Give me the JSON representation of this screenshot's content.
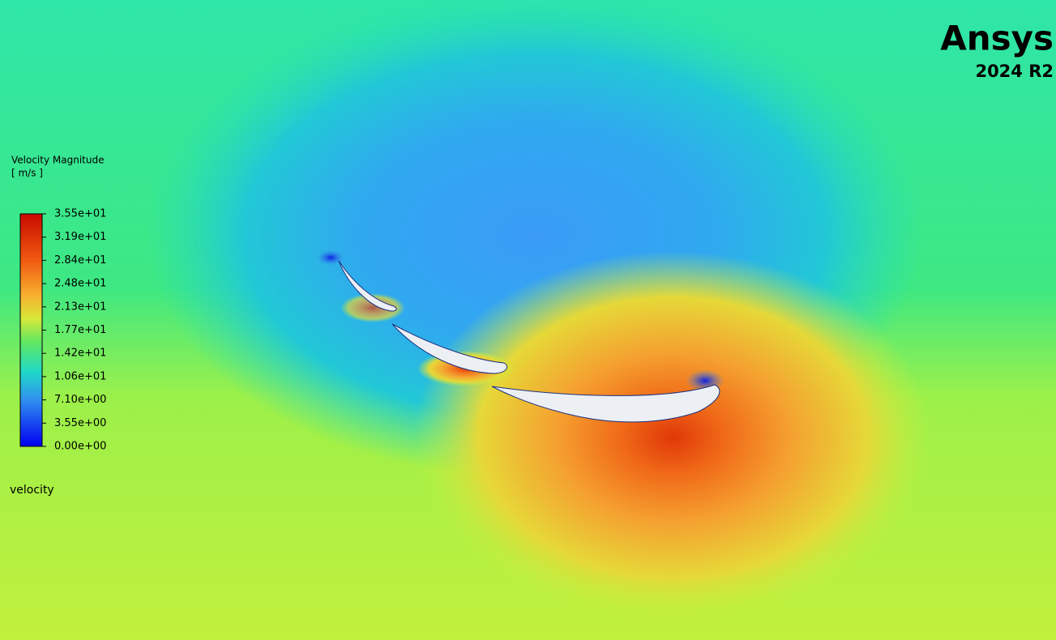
{
  "logo": {
    "name": "Ansys",
    "version": "2024 R2"
  },
  "legend": {
    "title": "Velocity Magnitude",
    "unit": "[ m/s ]",
    "ticks": [
      "3.55e+01",
      "3.19e+01",
      "2.84e+01",
      "2.48e+01",
      "2.13e+01",
      "1.77e+01",
      "1.42e+01",
      "1.06e+01",
      "7.10e+00",
      "3.55e+00",
      "0.00e+00"
    ]
  },
  "caption": "velocity"
}
